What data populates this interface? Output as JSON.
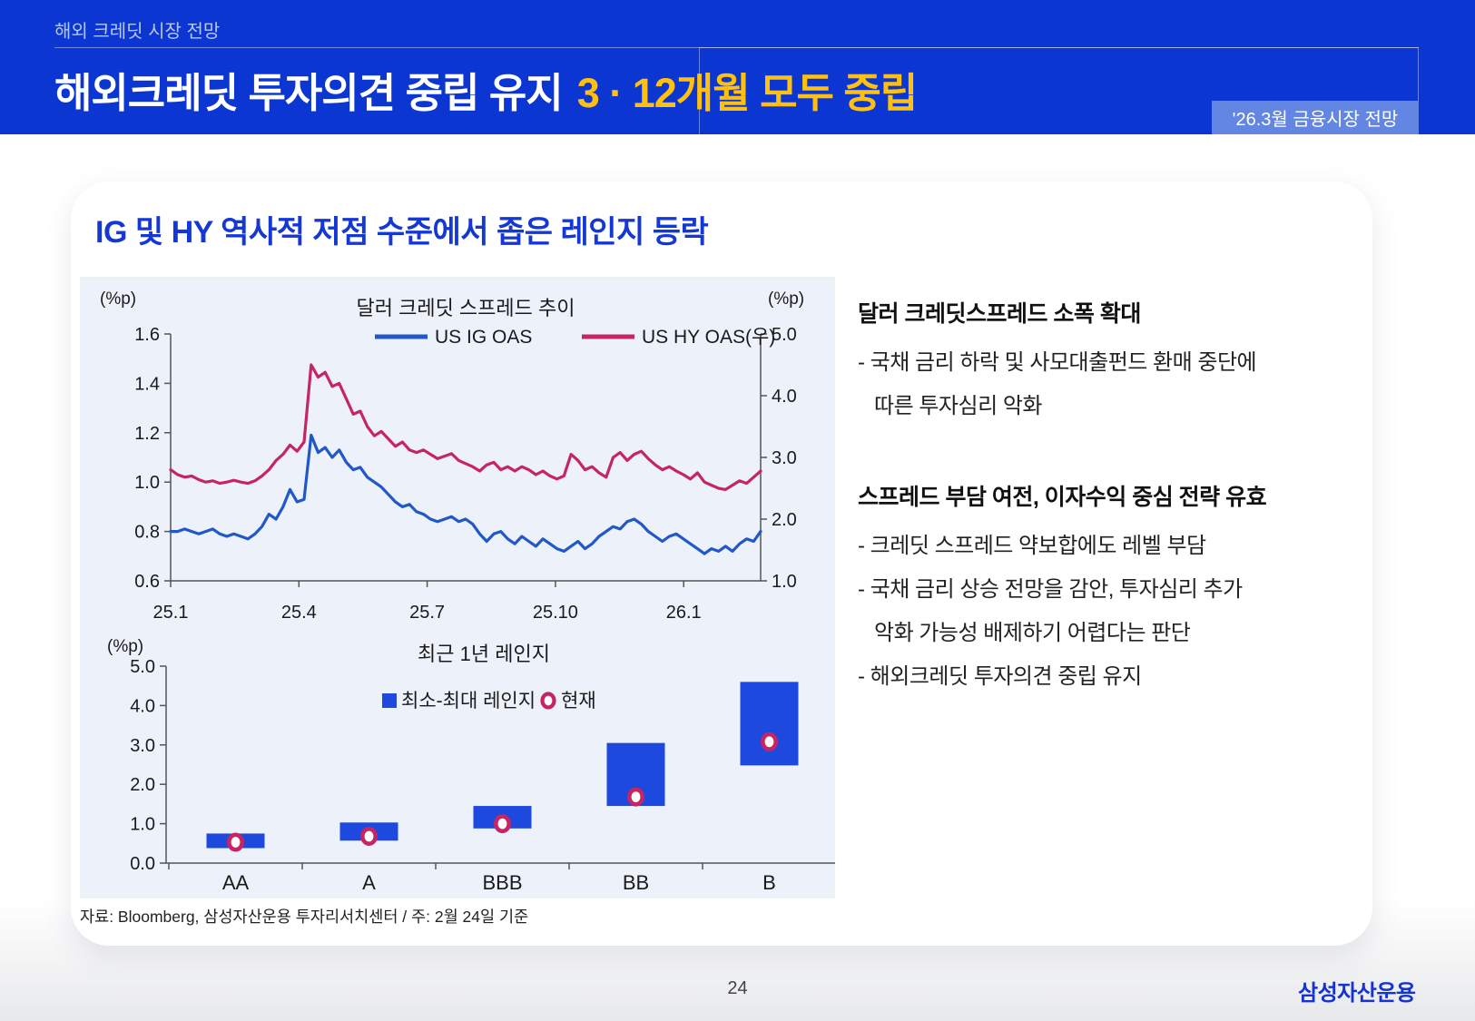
{
  "header": {
    "eyebrow": "해외 크레딧 시장 전망",
    "title_main": "해외크레딧 투자의견 중립 유지",
    "title_accent": "3 · 12개월 모두 중립",
    "badge": "'26.3월 금융시장 전망",
    "colors": {
      "bar_bg": "#0c36d2",
      "accent_yellow": "#ffc010",
      "badge_bg": "#6286e1"
    }
  },
  "card": {
    "title": "IG 및 HY 역사적 저점 수준에서 좁은 레인지 등락",
    "title_color": "#1537d3",
    "panel_bg": "#edf1fa",
    "source_note": "자료: Bloomberg, 삼성자산운용 투자리서치센터 / 주: 2월 24일 기준"
  },
  "right_panel": {
    "sections": [
      {
        "heading": "달러 크레딧스프레드 소폭 확대",
        "bullets": [
          [
            "- 국채 금리 하락 및 사모대출펀드 환매 중단에",
            "따른 투자심리 악화"
          ]
        ]
      },
      {
        "heading": "스프레드 부담 여전, 이자수익 중심 전략 유효",
        "bullets": [
          [
            "- 크레딧 스프레드 약보합에도 레벨 부담"
          ],
          [
            "- 국채 금리 상승 전망을 감안, 투자심리 추가",
            "악화 가능성 배제하기 어렵다는 판단"
          ],
          [
            "- 해외크레딧 투자의견 중립 유지"
          ]
        ]
      }
    ]
  },
  "footer": {
    "page_number": "24",
    "logo": "삼성자산운용"
  },
  "chart_data": [
    {
      "type": "line",
      "title": "달러 크레딧 스프레드 추이",
      "unit_left": "(%p)",
      "unit_right": "(%p)",
      "months_span": 13.8,
      "x_ticks": [
        {
          "label": "25.1",
          "m": 0
        },
        {
          "label": "25.4",
          "m": 3
        },
        {
          "label": "25.7",
          "m": 6
        },
        {
          "label": "25.10",
          "m": 9
        },
        {
          "label": "26.1",
          "m": 12
        }
      ],
      "left_axis": {
        "min": 0.6,
        "max": 1.6,
        "ticks": [
          1.6,
          1.4,
          1.2,
          1.0,
          0.8,
          0.6
        ]
      },
      "right_axis": {
        "min": 1.0,
        "max": 5.0,
        "ticks": [
          5.0,
          4.0,
          3.0,
          2.0,
          1.0
        ]
      },
      "legend": [
        {
          "name": "US IG OAS",
          "color": "#2158c8"
        },
        {
          "name": "US HY OAS(우)",
          "color": "#c62563"
        }
      ],
      "series": [
        {
          "name": "US IG OAS",
          "axis": "left",
          "color": "#2158c8",
          "values": [
            0.8,
            0.8,
            0.81,
            0.8,
            0.79,
            0.8,
            0.81,
            0.79,
            0.78,
            0.79,
            0.78,
            0.77,
            0.79,
            0.82,
            0.87,
            0.85,
            0.9,
            0.97,
            0.92,
            0.93,
            1.19,
            1.12,
            1.14,
            1.1,
            1.13,
            1.08,
            1.05,
            1.06,
            1.02,
            1.0,
            0.98,
            0.95,
            0.92,
            0.9,
            0.91,
            0.88,
            0.87,
            0.85,
            0.84,
            0.85,
            0.86,
            0.84,
            0.85,
            0.83,
            0.79,
            0.76,
            0.79,
            0.8,
            0.77,
            0.75,
            0.78,
            0.76,
            0.74,
            0.77,
            0.75,
            0.73,
            0.72,
            0.74,
            0.76,
            0.73,
            0.75,
            0.78,
            0.8,
            0.82,
            0.81,
            0.84,
            0.85,
            0.83,
            0.8,
            0.78,
            0.76,
            0.78,
            0.79,
            0.77,
            0.75,
            0.73,
            0.71,
            0.73,
            0.72,
            0.74,
            0.72,
            0.75,
            0.77,
            0.76,
            0.8
          ]
        },
        {
          "name": "US HY OAS(우)",
          "axis": "right",
          "color": "#c62563",
          "values": [
            2.8,
            2.72,
            2.68,
            2.7,
            2.64,
            2.6,
            2.62,
            2.58,
            2.6,
            2.63,
            2.6,
            2.58,
            2.62,
            2.7,
            2.8,
            2.95,
            3.05,
            3.2,
            3.1,
            3.25,
            4.5,
            4.3,
            4.38,
            4.15,
            4.2,
            3.95,
            3.7,
            3.75,
            3.5,
            3.35,
            3.42,
            3.3,
            3.18,
            3.25,
            3.12,
            3.08,
            3.12,
            3.05,
            2.98,
            3.02,
            3.06,
            2.95,
            2.9,
            2.85,
            2.78,
            2.88,
            2.92,
            2.8,
            2.85,
            2.78,
            2.85,
            2.8,
            2.72,
            2.78,
            2.7,
            2.65,
            2.7,
            3.05,
            2.95,
            2.8,
            2.85,
            2.75,
            2.68,
            3.0,
            3.08,
            2.95,
            3.05,
            3.1,
            2.98,
            2.88,
            2.8,
            2.85,
            2.78,
            2.72,
            2.65,
            2.75,
            2.6,
            2.55,
            2.5,
            2.48,
            2.55,
            2.62,
            2.58,
            2.68,
            2.78
          ]
        }
      ]
    },
    {
      "type": "range_bar",
      "title": "최근 1년 레인지",
      "unit": "(%p)",
      "y_axis": {
        "min": 0.0,
        "max": 5.0,
        "ticks": [
          0.0,
          1.0,
          2.0,
          3.0,
          4.0,
          5.0
        ]
      },
      "categories": [
        "AA",
        "A",
        "BBB",
        "BB",
        "B"
      ],
      "legend": [
        {
          "name": "최소-최대 레인지",
          "color": "#1d49de",
          "marker": "square"
        },
        {
          "name": "현재",
          "color": "#c62563",
          "marker": "ring"
        }
      ],
      "ranges": [
        {
          "category": "AA",
          "min": 0.38,
          "max": 0.75,
          "current": 0.53
        },
        {
          "category": "A",
          "min": 0.57,
          "max": 1.03,
          "current": 0.68
        },
        {
          "category": "BBB",
          "min": 0.88,
          "max": 1.45,
          "current": 1.0
        },
        {
          "category": "BB",
          "min": 1.45,
          "max": 3.05,
          "current": 1.68
        },
        {
          "category": "B",
          "min": 2.48,
          "max": 4.6,
          "current": 3.08
        }
      ]
    }
  ]
}
